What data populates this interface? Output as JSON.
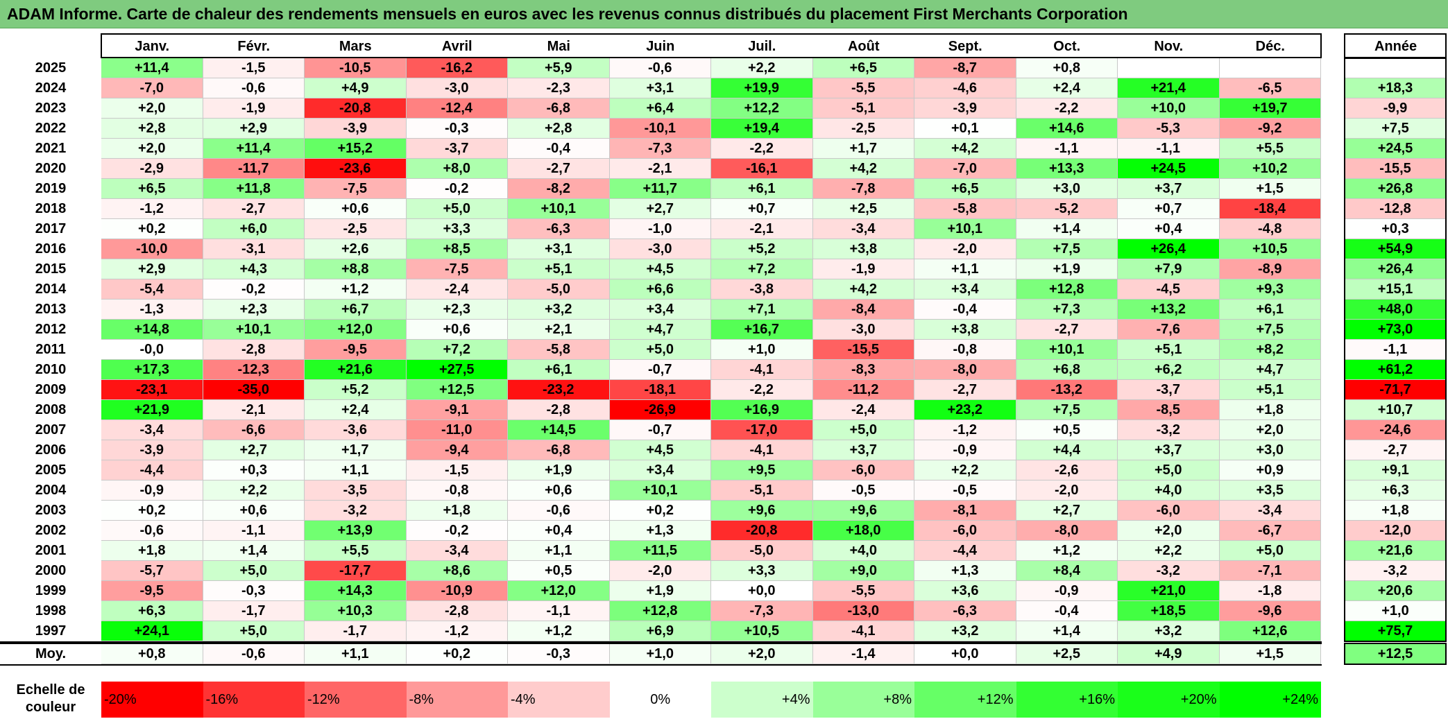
{
  "title": "ADAM Informe. Carte de chaleur des rendements mensuels en euros avec les revenus connus distribués du placement First Merchants Corporation",
  "chart_data": {
    "type": "heatmap",
    "title": "ADAM Informe. Carte de chaleur des rendements mensuels en euros avec les revenus connus distribués du placement First Merchants Corporation",
    "columns": [
      "Janv.",
      "Févr.",
      "Mars",
      "Avril",
      "Mai",
      "Juin",
      "Juil.",
      "Août",
      "Sept.",
      "Oct.",
      "Nov.",
      "Déc."
    ],
    "year_header": "Année",
    "rows": [
      {
        "year": "2025",
        "values": [
          "+11,4",
          "-1,5",
          "-10,5",
          "-16,2",
          "+5,9",
          "-0,6",
          "+2,2",
          "+6,5",
          "-8,7",
          "+0,8",
          "",
          ""
        ],
        "annual": ""
      },
      {
        "year": "2024",
        "values": [
          "-7,0",
          "-0,6",
          "+4,9",
          "-3,0",
          "-2,3",
          "+3,1",
          "+19,9",
          "-5,5",
          "-4,6",
          "+2,4",
          "+21,4",
          "-6,5"
        ],
        "annual": "+18,3"
      },
      {
        "year": "2023",
        "values": [
          "+2,0",
          "-1,9",
          "-20,8",
          "-12,4",
          "-6,8",
          "+6,4",
          "+12,2",
          "-5,1",
          "-3,9",
          "-2,2",
          "+10,0",
          "+19,7"
        ],
        "annual": "-9,9"
      },
      {
        "year": "2022",
        "values": [
          "+2,8",
          "+2,9",
          "-3,9",
          "-0,3",
          "+2,8",
          "-10,1",
          "+19,4",
          "-2,5",
          "+0,1",
          "+14,6",
          "-5,3",
          "-9,2"
        ],
        "annual": "+7,5"
      },
      {
        "year": "2021",
        "values": [
          "+2,0",
          "+11,4",
          "+15,2",
          "-3,7",
          "-0,4",
          "-7,3",
          "-2,2",
          "+1,7",
          "+4,2",
          "-1,1",
          "-1,1",
          "+5,5"
        ],
        "annual": "+24,5"
      },
      {
        "year": "2020",
        "values": [
          "-2,9",
          "-11,7",
          "-23,6",
          "+8,0",
          "-2,7",
          "-2,1",
          "-16,1",
          "+4,2",
          "-7,0",
          "+13,3",
          "+24,5",
          "+10,2"
        ],
        "annual": "-15,5"
      },
      {
        "year": "2019",
        "values": [
          "+6,5",
          "+11,8",
          "-7,5",
          "-0,2",
          "-8,2",
          "+11,7",
          "+6,1",
          "-7,8",
          "+6,5",
          "+3,0",
          "+3,7",
          "+1,5"
        ],
        "annual": "+26,8"
      },
      {
        "year": "2018",
        "values": [
          "-1,2",
          "-2,7",
          "+0,6",
          "+5,0",
          "+10,1",
          "+2,7",
          "+0,7",
          "+2,5",
          "-5,8",
          "-5,2",
          "+0,7",
          "-18,4"
        ],
        "annual": "-12,8"
      },
      {
        "year": "2017",
        "values": [
          "+0,2",
          "+6,0",
          "-2,5",
          "+3,3",
          "-6,3",
          "-1,0",
          "-2,1",
          "-3,4",
          "+10,1",
          "+1,4",
          "+0,4",
          "-4,8"
        ],
        "annual": "+0,3"
      },
      {
        "year": "2016",
        "values": [
          "-10,0",
          "-3,1",
          "+2,6",
          "+8,5",
          "+3,1",
          "-3,0",
          "+5,2",
          "+3,8",
          "-2,0",
          "+7,5",
          "+26,4",
          "+10,5"
        ],
        "annual": "+54,9"
      },
      {
        "year": "2015",
        "values": [
          "+2,9",
          "+4,3",
          "+8,8",
          "-7,5",
          "+5,1",
          "+4,5",
          "+7,2",
          "-1,9",
          "+1,1",
          "+1,9",
          "+7,9",
          "-8,9"
        ],
        "annual": "+26,4"
      },
      {
        "year": "2014",
        "values": [
          "-5,4",
          "-0,2",
          "+1,2",
          "-2,4",
          "-5,0",
          "+6,6",
          "-3,8",
          "+4,2",
          "+3,4",
          "+12,8",
          "-4,5",
          "+9,3"
        ],
        "annual": "+15,1"
      },
      {
        "year": "2013",
        "values": [
          "-1,3",
          "+2,3",
          "+6,7",
          "+2,3",
          "+3,2",
          "+3,4",
          "+7,1",
          "-8,4",
          "-0,4",
          "+7,3",
          "+13,2",
          "+6,1"
        ],
        "annual": "+48,0"
      },
      {
        "year": "2012",
        "values": [
          "+14,8",
          "+10,1",
          "+12,0",
          "+0,6",
          "+2,1",
          "+4,7",
          "+16,7",
          "-3,0",
          "+3,8",
          "-2,7",
          "-7,6",
          "+7,5"
        ],
        "annual": "+73,0"
      },
      {
        "year": "2011",
        "values": [
          "-0,0",
          "-2,8",
          "-9,5",
          "+7,2",
          "-5,8",
          "+5,0",
          "+1,0",
          "-15,5",
          "-0,8",
          "+10,1",
          "+5,1",
          "+8,2"
        ],
        "annual": "-1,1"
      },
      {
        "year": "2010",
        "values": [
          "+17,3",
          "-12,3",
          "+21,6",
          "+27,5",
          "+6,1",
          "-0,7",
          "-4,1",
          "-8,3",
          "-8,0",
          "+6,8",
          "+6,2",
          "+4,7"
        ],
        "annual": "+61,2"
      },
      {
        "year": "2009",
        "values": [
          "-23,1",
          "-35,0",
          "+5,2",
          "+12,5",
          "-23,2",
          "-18,1",
          "-2,2",
          "-11,2",
          "-2,7",
          "-13,2",
          "-3,7",
          "+5,1"
        ],
        "annual": "-71,7"
      },
      {
        "year": "2008",
        "values": [
          "+21,9",
          "-2,1",
          "+2,4",
          "-9,1",
          "-2,8",
          "-26,9",
          "+16,9",
          "-2,4",
          "+23,2",
          "+7,5",
          "-8,5",
          "+1,8"
        ],
        "annual": "+10,7"
      },
      {
        "year": "2007",
        "values": [
          "-3,4",
          "-6,6",
          "-3,6",
          "-11,0",
          "+14,5",
          "-0,7",
          "-17,0",
          "+5,0",
          "-1,2",
          "+0,5",
          "-3,2",
          "+2,0"
        ],
        "annual": "-24,6"
      },
      {
        "year": "2006",
        "values": [
          "-3,9",
          "+2,7",
          "+1,7",
          "-9,4",
          "-6,8",
          "+4,5",
          "-4,1",
          "+3,7",
          "-0,9",
          "+4,4",
          "+3,7",
          "+3,0"
        ],
        "annual": "-2,7"
      },
      {
        "year": "2005",
        "values": [
          "-4,4",
          "+0,3",
          "+1,1",
          "-1,5",
          "+1,9",
          "+3,4",
          "+9,5",
          "-6,0",
          "+2,2",
          "-2,6",
          "+5,0",
          "+0,9"
        ],
        "annual": "+9,1"
      },
      {
        "year": "2004",
        "values": [
          "-0,9",
          "+2,2",
          "-3,5",
          "-0,8",
          "+0,6",
          "+10,1",
          "-5,1",
          "-0,5",
          "-0,5",
          "-2,0",
          "+4,0",
          "+3,5"
        ],
        "annual": "+6,3"
      },
      {
        "year": "2003",
        "values": [
          "+0,2",
          "+0,6",
          "-3,2",
          "+1,8",
          "-0,6",
          "+0,2",
          "+9,6",
          "+9,6",
          "-8,1",
          "+2,7",
          "-6,0",
          "-3,4"
        ],
        "annual": "+1,8"
      },
      {
        "year": "2002",
        "values": [
          "-0,6",
          "-1,1",
          "+13,9",
          "-0,2",
          "+0,4",
          "+1,3",
          "-20,8",
          "+18,0",
          "-6,0",
          "-8,0",
          "+2,0",
          "-6,7"
        ],
        "annual": "-12,0"
      },
      {
        "year": "2001",
        "values": [
          "+1,8",
          "+1,4",
          "+5,5",
          "-3,4",
          "+1,1",
          "+11,5",
          "-5,0",
          "+4,0",
          "-4,4",
          "+1,2",
          "+2,2",
          "+5,0"
        ],
        "annual": "+21,6"
      },
      {
        "year": "2000",
        "values": [
          "-5,7",
          "+5,0",
          "-17,7",
          "+8,6",
          "+0,5",
          "-2,0",
          "+3,3",
          "+9,0",
          "+1,3",
          "+8,4",
          "-3,2",
          "-7,1"
        ],
        "annual": "-3,2"
      },
      {
        "year": "1999",
        "values": [
          "-9,5",
          "-0,3",
          "+14,3",
          "-10,9",
          "+12,0",
          "+1,9",
          "+0,0",
          "-5,5",
          "+3,6",
          "-0,9",
          "+21,0",
          "-1,8"
        ],
        "annual": "+20,6"
      },
      {
        "year": "1998",
        "values": [
          "+6,3",
          "-1,7",
          "+10,3",
          "-2,8",
          "-1,1",
          "+12,8",
          "-7,3",
          "-13,0",
          "-6,3",
          "-0,4",
          "+18,5",
          "-9,6"
        ],
        "annual": "+1,0"
      },
      {
        "year": "1997",
        "values": [
          "+24,1",
          "+5,0",
          "-1,7",
          "-1,2",
          "+1,2",
          "+6,9",
          "+10,5",
          "-4,1",
          "+3,2",
          "+1,4",
          "+3,2",
          "+12,6"
        ],
        "annual": "+75,7"
      }
    ],
    "average": {
      "label": "Moy.",
      "values": [
        "+0,8",
        "-0,6",
        "+1,1",
        "+0,2",
        "-0,3",
        "+1,0",
        "+2,0",
        "-1,4",
        "+0,0",
        "+2,5",
        "+4,9",
        "+1,5"
      ],
      "annual": "+12,5"
    },
    "scale": {
      "label": "Echelle de couleur",
      "steps": [
        {
          "text": "-20%",
          "color": "#ff0000",
          "align": "left"
        },
        {
          "text": "-16%",
          "color": "#ff3333",
          "align": "left"
        },
        {
          "text": "-12%",
          "color": "#ff6666",
          "align": "left"
        },
        {
          "text": "-8%",
          "color": "#ff9999",
          "align": "left"
        },
        {
          "text": "-4%",
          "color": "#ffcccc",
          "align": "left"
        },
        {
          "text": "0%",
          "color": "#ffffff",
          "align": "center"
        },
        {
          "text": "+4%",
          "color": "#ccffcc",
          "align": "right"
        },
        {
          "text": "+8%",
          "color": "#99ff99",
          "align": "right"
        },
        {
          "text": "+12%",
          "color": "#66ff66",
          "align": "right"
        },
        {
          "text": "+16%",
          "color": "#33ff33",
          "align": "right"
        },
        {
          "text": "+20%",
          "color": "#1aff1a",
          "align": "right"
        },
        {
          "text": "+24%",
          "color": "#00ff00",
          "align": "right"
        }
      ]
    }
  }
}
